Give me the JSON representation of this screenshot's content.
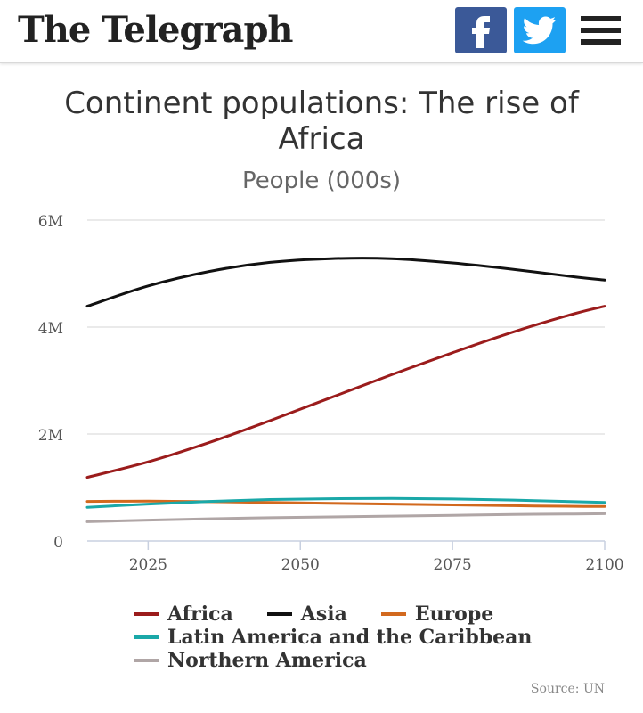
{
  "header": {
    "brand": "The Telegraph",
    "facebook_icon": "facebook-icon",
    "twitter_icon": "twitter-icon",
    "menu_icon": "hamburger-menu-icon",
    "facebook_color": "#3b5998",
    "twitter_color": "#1da1f2"
  },
  "source": "Source: UN",
  "chart_data": {
    "type": "line",
    "title": "Continent populations: The rise of Africa",
    "subtitle": "People (000s)",
    "xlabel": "",
    "ylabel": "",
    "xlim": [
      2015,
      2100
    ],
    "ylim": [
      0,
      6000000
    ],
    "yticks": [
      {
        "value": 0,
        "label": "0"
      },
      {
        "value": 2000000,
        "label": "2M"
      },
      {
        "value": 4000000,
        "label": "4M"
      },
      {
        "value": 6000000,
        "label": "6M"
      }
    ],
    "xticks": [
      {
        "value": 2025,
        "label": "2025"
      },
      {
        "value": 2050,
        "label": "2050"
      },
      {
        "value": 2075,
        "label": "2075"
      },
      {
        "value": 2100,
        "label": "2100"
      }
    ],
    "grid": true,
    "legend_position": "bottom",
    "x": [
      2015,
      2025,
      2035,
      2045,
      2055,
      2065,
      2075,
      2085,
      2095,
      2100
    ],
    "series": [
      {
        "name": "Africa",
        "color": "#9b1c1c",
        "values": [
          1190000,
          1480000,
          1840000,
          2250000,
          2680000,
          3110000,
          3520000,
          3910000,
          4250000,
          4390000
        ]
      },
      {
        "name": "Asia",
        "color": "#111111",
        "values": [
          4390000,
          4770000,
          5040000,
          5210000,
          5280000,
          5280000,
          5200000,
          5080000,
          4940000,
          4880000
        ]
      },
      {
        "name": "Europe",
        "color": "#d2691e",
        "values": [
          740000,
          745000,
          735000,
          720000,
          705000,
          690000,
          675000,
          660000,
          648000,
          646000
        ]
      },
      {
        "name": "Latin America and the Caribbean",
        "color": "#1aa8a8",
        "values": [
          630000,
          690000,
          740000,
          775000,
          790000,
          795000,
          785000,
          765000,
          735000,
          720000
        ]
      },
      {
        "name": "Northern America",
        "color": "#b0a6a6",
        "values": [
          360000,
          390000,
          415000,
          435000,
          450000,
          465000,
          480000,
          495000,
          505000,
          510000
        ]
      }
    ]
  }
}
